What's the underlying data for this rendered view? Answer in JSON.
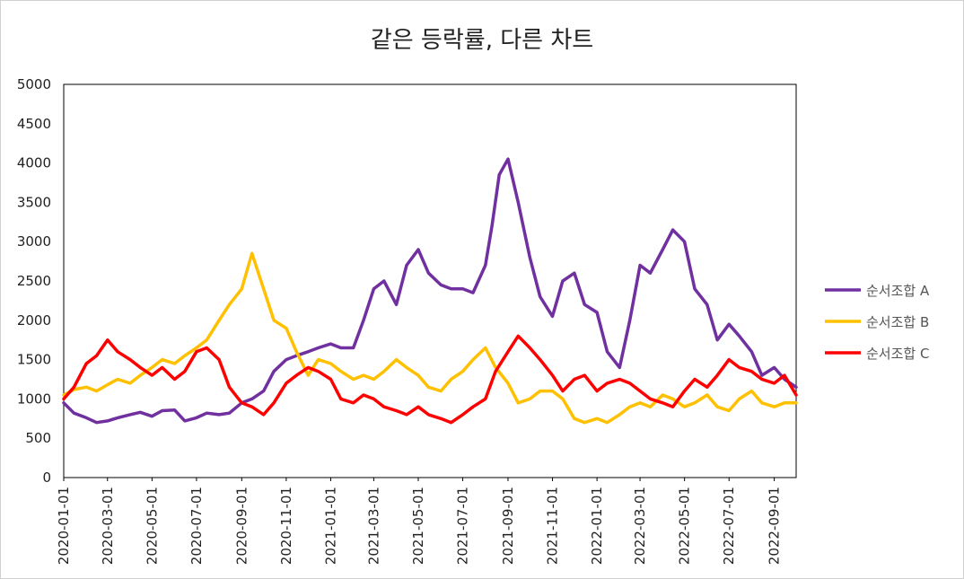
{
  "chart_data": {
    "type": "line",
    "title": "같은 등락률, 다른 차트",
    "xlabel": "",
    "ylabel": "",
    "ylim": [
      0,
      5000
    ],
    "yticks": [
      0,
      500,
      1000,
      1500,
      2000,
      2500,
      3000,
      3500,
      4000,
      4500,
      5000
    ],
    "x_start": "2020-01-01",
    "x_end": "2022-10-01",
    "xtick_labels": [
      "2020-01-01",
      "2020-03-01",
      "2020-05-01",
      "2020-07-01",
      "2020-09-01",
      "2020-11-01",
      "2021-01-01",
      "2021-03-01",
      "2021-05-01",
      "2021-07-01",
      "2021-09-01",
      "2021-11-01",
      "2022-01-01",
      "2022-03-01",
      "2022-05-01",
      "2022-07-01",
      "2022-09-01"
    ],
    "legend_position": "right",
    "grid": false,
    "series": [
      {
        "name": "순서조합",
        "legend_suffix": "A",
        "color": "#7030a0",
        "x": [
          "2020-01-01",
          "2020-01-15",
          "2020-02-01",
          "2020-02-15",
          "2020-03-01",
          "2020-03-15",
          "2020-04-01",
          "2020-04-15",
          "2020-05-01",
          "2020-05-15",
          "2020-06-01",
          "2020-06-15",
          "2020-07-01",
          "2020-07-15",
          "2020-08-01",
          "2020-08-15",
          "2020-09-01",
          "2020-09-15",
          "2020-10-01",
          "2020-10-15",
          "2020-11-01",
          "2020-11-15",
          "2020-12-01",
          "2020-12-15",
          "2021-01-01",
          "2021-01-15",
          "2021-02-01",
          "2021-02-15",
          "2021-03-01",
          "2021-03-15",
          "2021-04-01",
          "2021-04-15",
          "2021-05-01",
          "2021-05-15",
          "2021-06-01",
          "2021-06-15",
          "2021-07-01",
          "2021-07-15",
          "2021-08-01",
          "2021-08-10",
          "2021-08-20",
          "2021-09-01",
          "2021-09-15",
          "2021-10-01",
          "2021-10-15",
          "2021-11-01",
          "2021-11-15",
          "2021-12-01",
          "2021-12-15",
          "2022-01-01",
          "2022-01-15",
          "2022-02-01",
          "2022-02-15",
          "2022-03-01",
          "2022-03-15",
          "2022-04-01",
          "2022-04-15",
          "2022-05-01",
          "2022-05-15",
          "2022-06-01",
          "2022-06-15",
          "2022-07-01",
          "2022-07-15",
          "2022-08-01",
          "2022-08-15",
          "2022-09-01",
          "2022-09-15",
          "2022-10-01"
        ],
        "values": [
          950,
          820,
          760,
          700,
          720,
          760,
          800,
          830,
          780,
          850,
          860,
          720,
          760,
          820,
          800,
          820,
          950,
          1000,
          1100,
          1350,
          1500,
          1550,
          1600,
          1650,
          1700,
          1650,
          1650,
          2000,
          2400,
          2500,
          2200,
          2700,
          2900,
          2600,
          2450,
          2400,
          2400,
          2350,
          2700,
          3200,
          3850,
          4050,
          3500,
          2800,
          2300,
          2050,
          2500,
          2600,
          2200,
          2100,
          1600,
          1400,
          2000,
          2700,
          2600,
          2900,
          3150,
          3000,
          2400,
          2200,
          1750,
          1950,
          1800,
          1600,
          1300,
          1400,
          1250,
          1150
        ]
      },
      {
        "name": "순서조합",
        "legend_suffix": "B",
        "color": "#ffc000",
        "x": [
          "2020-01-01",
          "2020-01-15",
          "2020-02-01",
          "2020-02-15",
          "2020-03-01",
          "2020-03-15",
          "2020-04-01",
          "2020-04-15",
          "2020-05-01",
          "2020-05-15",
          "2020-06-01",
          "2020-06-15",
          "2020-07-01",
          "2020-07-15",
          "2020-08-01",
          "2020-08-15",
          "2020-09-01",
          "2020-09-15",
          "2020-10-01",
          "2020-10-15",
          "2020-11-01",
          "2020-11-15",
          "2020-12-01",
          "2020-12-15",
          "2021-01-01",
          "2021-01-15",
          "2021-02-01",
          "2021-02-15",
          "2021-03-01",
          "2021-03-15",
          "2021-04-01",
          "2021-04-15",
          "2021-05-01",
          "2021-05-15",
          "2021-06-01",
          "2021-06-15",
          "2021-07-01",
          "2021-07-15",
          "2021-08-01",
          "2021-08-15",
          "2021-09-01",
          "2021-09-15",
          "2021-10-01",
          "2021-10-15",
          "2021-11-01",
          "2021-11-15",
          "2021-12-01",
          "2021-12-15",
          "2022-01-01",
          "2022-01-15",
          "2022-02-01",
          "2022-02-15",
          "2022-03-01",
          "2022-03-15",
          "2022-04-01",
          "2022-04-15",
          "2022-05-01",
          "2022-05-15",
          "2022-06-01",
          "2022-06-15",
          "2022-07-01",
          "2022-07-15",
          "2022-08-01",
          "2022-08-15",
          "2022-09-01",
          "2022-09-15",
          "2022-10-01"
        ],
        "values": [
          1050,
          1120,
          1150,
          1100,
          1180,
          1250,
          1200,
          1300,
          1400,
          1500,
          1450,
          1550,
          1650,
          1750,
          2000,
          2200,
          2400,
          2850,
          2400,
          2000,
          1900,
          1600,
          1300,
          1500,
          1450,
          1350,
          1250,
          1300,
          1250,
          1350,
          1500,
          1400,
          1300,
          1150,
          1100,
          1250,
          1350,
          1500,
          1650,
          1400,
          1200,
          950,
          1000,
          1100,
          1100,
          1000,
          750,
          700,
          750,
          700,
          800,
          900,
          950,
          900,
          1050,
          1000,
          900,
          950,
          1050,
          900,
          850,
          1000,
          1100,
          950,
          900,
          950,
          950
        ]
      },
      {
        "name": "순서조합",
        "legend_suffix": "C",
        "color": "#ff0000",
        "x": [
          "2020-01-01",
          "2020-01-15",
          "2020-02-01",
          "2020-02-15",
          "2020-03-01",
          "2020-03-15",
          "2020-04-01",
          "2020-04-15",
          "2020-05-01",
          "2020-05-15",
          "2020-06-01",
          "2020-06-15",
          "2020-07-01",
          "2020-07-15",
          "2020-08-01",
          "2020-08-15",
          "2020-09-01",
          "2020-09-15",
          "2020-10-01",
          "2020-10-15",
          "2020-11-01",
          "2020-11-15",
          "2020-12-01",
          "2020-12-15",
          "2021-01-01",
          "2021-01-15",
          "2021-02-01",
          "2021-02-15",
          "2021-03-01",
          "2021-03-15",
          "2021-04-01",
          "2021-04-15",
          "2021-05-01",
          "2021-05-15",
          "2021-06-01",
          "2021-06-15",
          "2021-07-01",
          "2021-07-15",
          "2021-08-01",
          "2021-08-15",
          "2021-09-01",
          "2021-09-15",
          "2021-10-01",
          "2021-10-15",
          "2021-11-01",
          "2021-11-15",
          "2021-12-01",
          "2021-12-15",
          "2022-01-01",
          "2022-01-15",
          "2022-02-01",
          "2022-02-15",
          "2022-03-01",
          "2022-03-15",
          "2022-04-01",
          "2022-04-15",
          "2022-05-01",
          "2022-05-15",
          "2022-06-01",
          "2022-06-15",
          "2022-07-01",
          "2022-07-15",
          "2022-08-01",
          "2022-08-15",
          "2022-09-01",
          "2022-09-15",
          "2022-10-01"
        ],
        "values": [
          1000,
          1150,
          1450,
          1550,
          1750,
          1600,
          1500,
          1400,
          1300,
          1400,
          1250,
          1350,
          1600,
          1650,
          1500,
          1150,
          950,
          900,
          800,
          950,
          1200,
          1300,
          1400,
          1350,
          1250,
          1000,
          950,
          1050,
          1000,
          900,
          850,
          800,
          900,
          800,
          750,
          700,
          800,
          900,
          1000,
          1350,
          1600,
          1800,
          1650,
          1500,
          1300,
          1100,
          1250,
          1300,
          1100,
          1200,
          1250,
          1200,
          1100,
          1000,
          950,
          900,
          1100,
          1250,
          1150,
          1300,
          1500,
          1400,
          1350,
          1250,
          1200,
          1300,
          1050
        ]
      }
    ]
  }
}
